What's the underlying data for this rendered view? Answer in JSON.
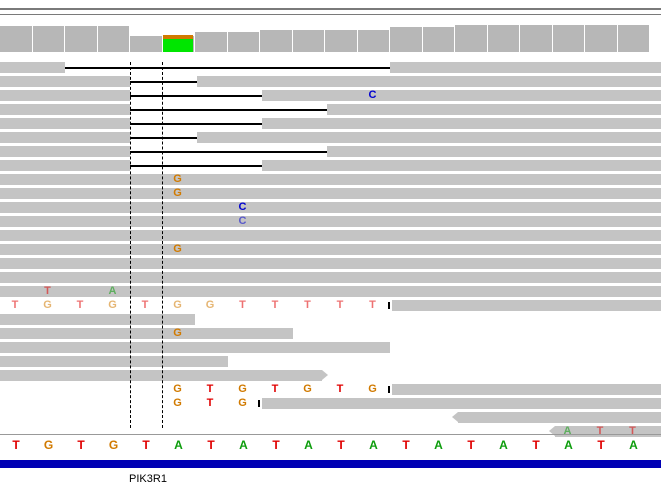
{
  "colors": {
    "A": "#0c9d0c",
    "C": "#0000d0",
    "G": "#d17a00",
    "T": "#e00000",
    "read": "#c4c4c4",
    "coverage": "#b7b7b7",
    "gene": "#0000b4"
  },
  "reference": {
    "bases": [
      "T",
      "G",
      "T",
      "G",
      "T",
      "A",
      "T",
      "A",
      "T",
      "A",
      "T",
      "A",
      "T",
      "A",
      "T",
      "A",
      "T",
      "A",
      "T",
      "A"
    ]
  },
  "gene": {
    "name": "PIK3R1"
  },
  "mismatches": [
    {
      "row": 2,
      "col": 11,
      "base": "C"
    },
    {
      "row": 8,
      "col": 5,
      "base": "G"
    },
    {
      "row": 9,
      "col": 5,
      "base": "G"
    },
    {
      "row": 10,
      "col": 7,
      "base": "C"
    },
    {
      "row": 11,
      "col": 7,
      "base": "C"
    },
    {
      "row": 13,
      "col": 5,
      "base": "G"
    },
    {
      "row": 16,
      "col": 1,
      "base": "T"
    },
    {
      "row": 16,
      "col": 3,
      "base": "A"
    },
    {
      "row": 17,
      "col": 0,
      "base": "T"
    },
    {
      "row": 17,
      "col": 1,
      "base": "G"
    },
    {
      "row": 17,
      "col": 2,
      "base": "T"
    },
    {
      "row": 17,
      "col": 3,
      "base": "G"
    },
    {
      "row": 17,
      "col": 4,
      "base": "T"
    },
    {
      "row": 17,
      "col": 5,
      "base": "G"
    },
    {
      "row": 17,
      "col": 6,
      "base": "G"
    },
    {
      "row": 17,
      "col": 7,
      "base": "T"
    },
    {
      "row": 17,
      "col": 8,
      "base": "T"
    },
    {
      "row": 17,
      "col": 9,
      "base": "T"
    },
    {
      "row": 17,
      "col": 10,
      "base": "T"
    },
    {
      "row": 17,
      "col": 11,
      "base": "T"
    },
    {
      "row": 19,
      "col": 5,
      "base": "G"
    },
    {
      "row": 23,
      "col": 5,
      "base": "G"
    },
    {
      "row": 23,
      "col": 6,
      "base": "T"
    },
    {
      "row": 23,
      "col": 7,
      "base": "G"
    },
    {
      "row": 23,
      "col": 8,
      "base": "T"
    },
    {
      "row": 23,
      "col": 9,
      "base": "G"
    },
    {
      "row": 23,
      "col": 10,
      "base": "T"
    },
    {
      "row": 23,
      "col": 11,
      "base": "G"
    },
    {
      "row": 24,
      "col": 5,
      "base": "G"
    },
    {
      "row": 24,
      "col": 6,
      "base": "T"
    },
    {
      "row": 24,
      "col": 7,
      "base": "G"
    },
    {
      "row": 26,
      "col": 17,
      "base": "A"
    },
    {
      "row": 26,
      "col": 18,
      "base": "T"
    },
    {
      "row": 26,
      "col": 19,
      "base": "T"
    }
  ]
}
